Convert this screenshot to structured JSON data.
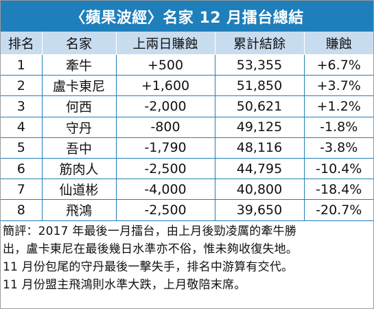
{
  "title": "〈蘋果波經〉名家 12 月擂台總結",
  "table": {
    "headers": [
      "排名",
      "名家",
      "上兩日賺蝕",
      "累計結餘",
      "賺蝕"
    ],
    "rows": [
      [
        "1",
        "牽牛",
        "+500",
        "53,355",
        "+6.7%"
      ],
      [
        "2",
        "盧卡東尼",
        "+1,600",
        "51,850",
        "+3.7%"
      ],
      [
        "3",
        "何西",
        "-2,000",
        "50,621",
        "+1.2%"
      ],
      [
        "4",
        "守丹",
        "-800",
        "49,125",
        "-1.8%"
      ],
      [
        "5",
        "吾中",
        "-1,790",
        "48,116",
        "-3.8%"
      ],
      [
        "6",
        "筋肉人",
        "-2,500",
        "44,795",
        "-10.4%"
      ],
      [
        "7",
        "仙道彬",
        "-4,000",
        "40,800",
        "-18.4%"
      ],
      [
        "8",
        "飛鴻",
        "-2,500",
        "39,650",
        "-20.7%"
      ]
    ]
  },
  "comment": {
    "lines": [
      "簡評：2017 年最後一月擂台，由上月後勁凌厲的牽牛勝",
      "出，盧卡東尼在最後幾日水準亦不俗，惟未夠收復失地。",
      "11 月份包尾的守丹最後一擊失手，排名中游算有交代。",
      "11 月份盟主飛鴻則水準大跌，上月敬陪末席。"
    ]
  },
  "colors": {
    "title_bg": "#1e7fbb",
    "header_bg": "#c8dcf0",
    "grid": "#1e7fbb"
  }
}
